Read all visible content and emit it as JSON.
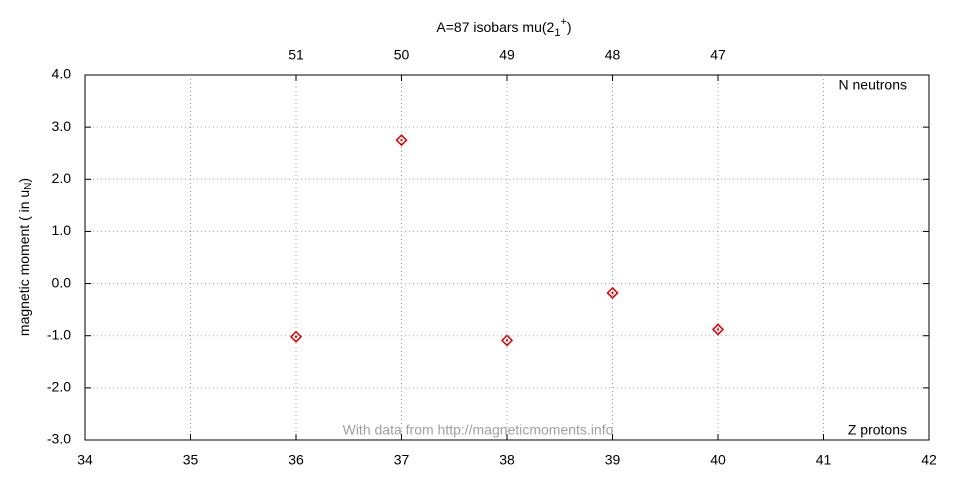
{
  "chart_data": {
    "type": "scatter",
    "title": "A=87 isobars mu(2",
    "title_sub": "1",
    "title_sup": "+",
    "title_end": ")",
    "ylabel": "magnetic moment ( in u",
    "ylabel_sub": "N",
    "ylabel_end": ")",
    "annotations": [
      "N neutrons",
      "Z protons",
      "With data from http://magneticmoments.info"
    ],
    "x": [
      36,
      37,
      38,
      39,
      40
    ],
    "series": [
      {
        "name": "mu",
        "color": "#dd0000",
        "values": [
          -1.02,
          2.75,
          -1.09,
          -0.18,
          -0.88
        ]
      }
    ],
    "xlim": [
      34,
      42
    ],
    "xticks": [
      34,
      35,
      36,
      37,
      38,
      39,
      40,
      41,
      42
    ],
    "x2lim": [
      53,
      45
    ],
    "x2ticks": [
      51,
      50,
      49,
      48,
      47
    ],
    "ylim": [
      -3,
      4
    ],
    "yticks": [
      {
        "value": -3,
        "label": "-3.0"
      },
      {
        "value": -2,
        "label": "-2.0"
      },
      {
        "value": -1,
        "label": "-1.0"
      },
      {
        "value": 0,
        "label": "0.0"
      },
      {
        "value": 1,
        "label": "1.0"
      },
      {
        "value": 2,
        "label": "2.0"
      },
      {
        "value": 3,
        "label": "3.0"
      },
      {
        "value": 4,
        "label": "4.0"
      }
    ],
    "grid": true
  }
}
